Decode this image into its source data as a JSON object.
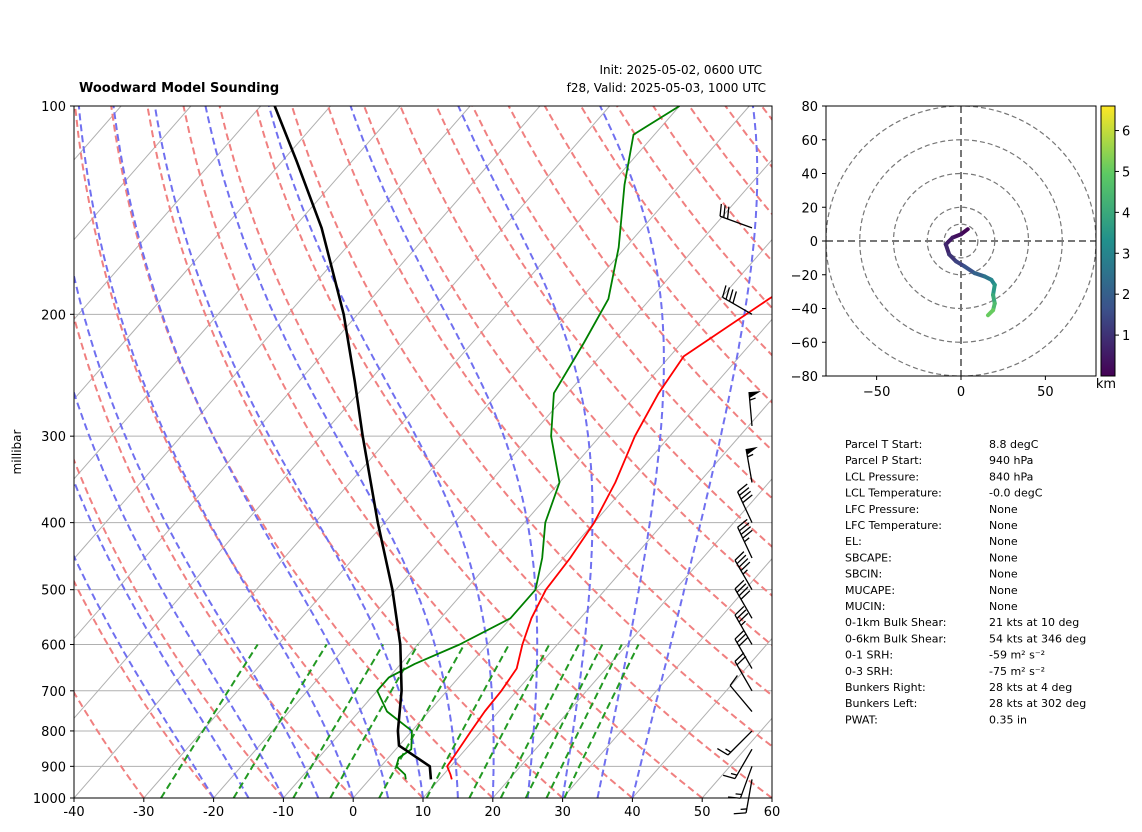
{
  "header": {
    "title": "Woodward Model Sounding",
    "init": "Init: 2025-05-02, 0600 UTC",
    "valid": "f28, Valid: 2025-05-03, 1000 UTC"
  },
  "chart_data": [
    {
      "type": "skew-t",
      "ylabel": "millibar",
      "xlim": [
        -40,
        60
      ],
      "ylim_hpa": [
        1000,
        100
      ],
      "y_scale": "log",
      "x_ticks": [
        "-40",
        "-30",
        "-20",
        "-10",
        "0",
        "10",
        "20",
        "30",
        "40",
        "50",
        "60"
      ],
      "y_ticks": [
        "100",
        "200",
        "300",
        "400",
        "500",
        "600",
        "700",
        "800",
        "900",
        "1000"
      ],
      "colors": {
        "temperature": "#ff0000",
        "dewpoint": "#008000",
        "parcel": "#000000",
        "dry_adiabats": "#f08080",
        "moist_adiabats": "#7070f0",
        "mixing_ratio": "#229922"
      },
      "series": [
        {
          "key": "temperature",
          "points": [
            [
              940,
              11.8
            ],
            [
              925,
              11.0
            ],
            [
              900,
              9.5
            ],
            [
              850,
              9.0
            ],
            [
              800,
              8.5
            ],
            [
              750,
              8.0
            ],
            [
              700,
              7.8
            ],
            [
              650,
              7.2
            ],
            [
              600,
              5.0
            ],
            [
              550,
              3.0
            ],
            [
              500,
              1.5
            ],
            [
              450,
              1.0
            ],
            [
              400,
              0.0
            ],
            [
              350,
              -2.0
            ],
            [
              300,
              -5.0
            ],
            [
              260,
              -7.0
            ],
            [
              230,
              -8.0
            ],
            [
              190,
              -3.0
            ],
            [
              160,
              2.0
            ],
            [
              130,
              10.0
            ],
            [
              110,
              10.0
            ],
            [
              100,
              11.0
            ]
          ]
        },
        {
          "key": "dewpoint",
          "points": [
            [
              940,
              5.2
            ],
            [
              925,
              4.5
            ],
            [
              900,
              2.2
            ],
            [
              875,
              1.5
            ],
            [
              850,
              2.2
            ],
            [
              800,
              0.0
            ],
            [
              750,
              -6.0
            ],
            [
              700,
              -10.0
            ],
            [
              670,
              -10.0
            ],
            [
              640,
              -8.0
            ],
            [
              600,
              -4.0
            ],
            [
              550,
              0.0
            ],
            [
              500,
              0.0
            ],
            [
              450,
              -3.0
            ],
            [
              400,
              -7.0
            ],
            [
              350,
              -10.0
            ],
            [
              300,
              -17.0
            ],
            [
              260,
              -22.0
            ],
            [
              220,
              -24.0
            ],
            [
              190,
              -26.0
            ],
            [
              160,
              -31.0
            ],
            [
              130,
              -38.0
            ],
            [
              110,
              -43.0
            ],
            [
              100,
              -40.0
            ]
          ]
        },
        {
          "key": "parcel",
          "points": [
            [
              940,
              8.8
            ],
            [
              900,
              7.0
            ],
            [
              840,
              0.0
            ],
            [
              800,
              -2.0
            ],
            [
              700,
              -6.5
            ],
            [
              600,
              -12.5
            ],
            [
              500,
              -20.5
            ],
            [
              400,
              -31.0
            ],
            [
              300,
              -44.0
            ],
            [
              250,
              -52.0
            ],
            [
              200,
              -62.0
            ],
            [
              150,
              -76.0
            ],
            [
              120,
              -88.0
            ],
            [
              100,
              -98.0
            ]
          ]
        }
      ],
      "wind_barbs": [
        {
          "p": 940,
          "dir": 190,
          "kt": 15
        },
        {
          "p": 900,
          "dir": 200,
          "kt": 15
        },
        {
          "p": 850,
          "dir": 210,
          "kt": 15
        },
        {
          "p": 800,
          "dir": 225,
          "kt": 15
        },
        {
          "p": 750,
          "dir": 320,
          "kt": 10
        },
        {
          "p": 700,
          "dir": 330,
          "kt": 20
        },
        {
          "p": 650,
          "dir": 330,
          "kt": 30
        },
        {
          "p": 600,
          "dir": 330,
          "kt": 35
        },
        {
          "p": 550,
          "dir": 330,
          "kt": 40
        },
        {
          "p": 500,
          "dir": 330,
          "kt": 45
        },
        {
          "p": 450,
          "dir": 335,
          "kt": 45
        },
        {
          "p": 400,
          "dir": 335,
          "kt": 40
        },
        {
          "p": 350,
          "dir": 350,
          "kt": 55
        },
        {
          "p": 290,
          "dir": 355,
          "kt": 55
        },
        {
          "p": 200,
          "dir": 300,
          "kt": 40
        },
        {
          "p": 150,
          "dir": 290,
          "kt": 30
        }
      ]
    },
    {
      "type": "hodograph",
      "xlim": [
        -80,
        80
      ],
      "ylim": [
        -80,
        80
      ],
      "x_ticks": [
        "−50",
        "0",
        "50"
      ],
      "y_ticks": [
        "80",
        "60",
        "40",
        "20",
        "0",
        "−20",
        "−40",
        "−60",
        "−80"
      ],
      "rings_kt": [
        10,
        20,
        40,
        60,
        80
      ],
      "colorbar": {
        "label": "km",
        "ticks": [
          "1",
          "2",
          "3",
          "4",
          "5",
          "6"
        ],
        "range_km": [
          0,
          6.6
        ],
        "colormap": "viridis"
      },
      "trace": [
        {
          "u": 4,
          "v": 7,
          "z": 0.0
        },
        {
          "u": 0,
          "v": 4,
          "z": 0.2
        },
        {
          "u": -5,
          "v": 2,
          "z": 0.4
        },
        {
          "u": -9,
          "v": -2,
          "z": 0.6
        },
        {
          "u": -7,
          "v": -8,
          "z": 0.9
        },
        {
          "u": -3,
          "v": -12,
          "z": 1.2
        },
        {
          "u": 2,
          "v": -15,
          "z": 1.5
        },
        {
          "u": 8,
          "v": -19,
          "z": 1.9
        },
        {
          "u": 14,
          "v": -21,
          "z": 2.3
        },
        {
          "u": 18,
          "v": -23,
          "z": 2.8
        },
        {
          "u": 20,
          "v": -26,
          "z": 3.3
        },
        {
          "u": 19,
          "v": -32,
          "z": 3.8
        },
        {
          "u": 20,
          "v": -37,
          "z": 4.3
        },
        {
          "u": 19,
          "v": -41,
          "z": 4.8
        },
        {
          "u": 16,
          "v": -44,
          "z": 5.3
        }
      ]
    }
  ],
  "stats": [
    {
      "label": "Parcel T Start:",
      "value": "8.8 degC"
    },
    {
      "label": "Parcel P Start:",
      "value": "940 hPa"
    },
    {
      "label": "LCL Pressure:",
      "value": "840 hPa"
    },
    {
      "label": "LCL Temperature:",
      "value": "-0.0 degC"
    },
    {
      "label": "LFC Pressure:",
      "value": "None"
    },
    {
      "label": "LFC Temperature:",
      "value": "None"
    },
    {
      "label": "EL:",
      "value": "None"
    },
    {
      "label": "SBCAPE:",
      "value": "None"
    },
    {
      "label": "SBCIN:",
      "value": "None"
    },
    {
      "label": "MUCAPE:",
      "value": "None"
    },
    {
      "label": "MUCIN:",
      "value": "None"
    },
    {
      "label": "0-1km Bulk Shear:",
      "value": "21 kts at 10 deg"
    },
    {
      "label": "0-6km Bulk Shear:",
      "value": "54 kts at 346 deg"
    },
    {
      "label": "0-1 SRH:",
      "value": "-59 m² s⁻²"
    },
    {
      "label": "0-3 SRH:",
      "value": "-75 m² s⁻²"
    },
    {
      "label": "Bunkers Right:",
      "value": "28 kts at 4 deg"
    },
    {
      "label": "Bunkers Left:",
      "value": "28 kts at 302 deg"
    },
    {
      "label": "PWAT:",
      "value": "0.35 in"
    }
  ]
}
